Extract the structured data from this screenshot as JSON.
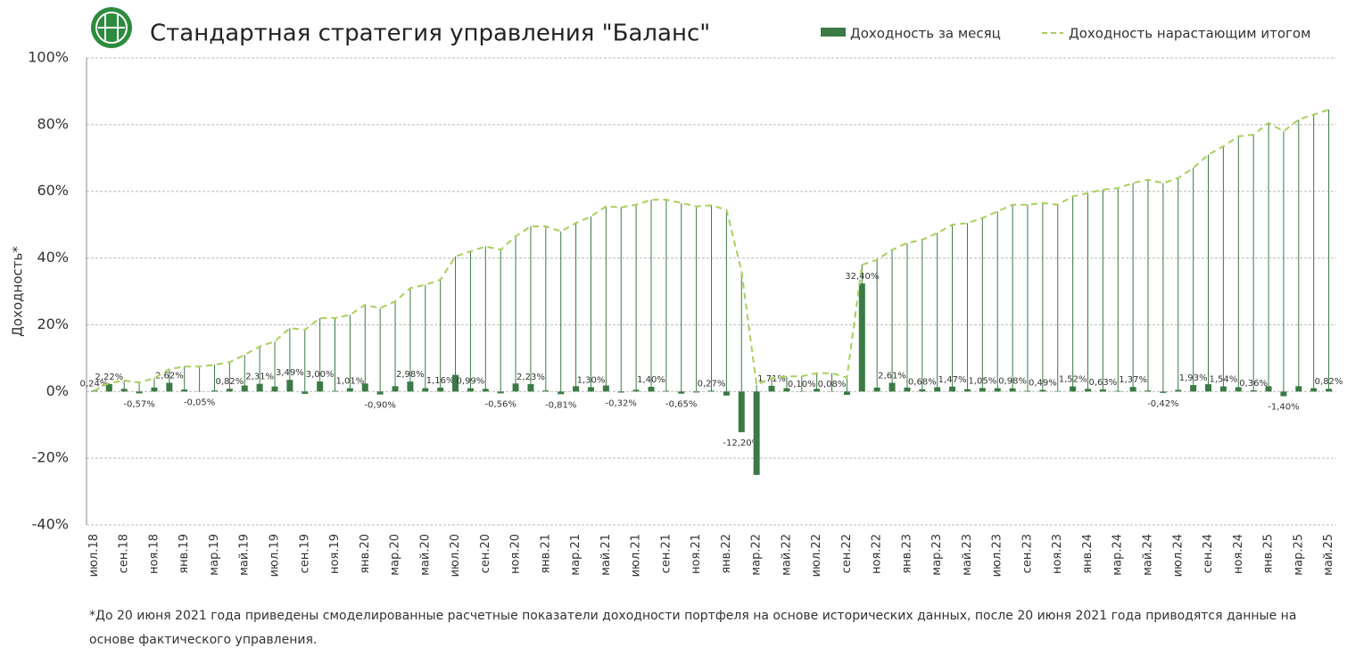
{
  "chart_data": {
    "type": "bar",
    "title": "Стандартная стратегия управления \"Баланс\"",
    "y_label": "Доходность*",
    "footnote": [
      "*До 20 июня 2021 года приведены смоделированные расчетные показатели доходности портфеля на основе исторических данных, после 20 июня 2021 года приводятся данные на",
      "основе фактического управления."
    ],
    "categories": [
      "июл.18",
      null,
      "сен.18",
      null,
      "ноя.18",
      null,
      "янв.19",
      null,
      "мар.19",
      null,
      "май.19",
      null,
      "июл.19",
      null,
      "сен.19",
      null,
      "ноя.19",
      null,
      "янв.20",
      null,
      "мар.20",
      null,
      "май.20",
      null,
      "июл.20",
      null,
      "сен.20",
      null,
      "ноя.20",
      null,
      "янв.21",
      null,
      "мар.21",
      null,
      "май.21",
      null,
      "июл.21",
      null,
      "сен.21",
      null,
      "ноя.21",
      null,
      "янв.22",
      null,
      "мар.22",
      null,
      "май.22",
      null,
      "июл.22",
      null,
      "сен.22",
      null,
      "ноя.22",
      null,
      "янв.23",
      null,
      "мар.23",
      null,
      "май.23",
      null,
      "июл.23",
      null,
      "сен.23",
      null,
      "ноя.23",
      null,
      "янв.24",
      null,
      "мар.24",
      null,
      "май.24",
      null,
      "июл.24",
      null,
      "сен.24",
      null,
      "ноя.24",
      null,
      "янв.25",
      null,
      "мар.25",
      null,
      "май.25"
    ],
    "series": [
      {
        "name": "Доходность за месяц",
        "type": "bar",
        "color": "#3b7a45",
        "values": [
          0.24,
          2.22,
          0.8,
          -0.57,
          1.2,
          2.62,
          0.6,
          -0.05,
          0.3,
          0.82,
          1.8,
          2.31,
          1.5,
          3.49,
          -0.7,
          3.0,
          0.2,
          1.01,
          2.4,
          -0.9,
          1.6,
          2.98,
          1.0,
          1.16,
          5.0,
          0.99,
          0.8,
          -0.56,
          2.4,
          2.23,
          0.3,
          -0.81,
          1.6,
          1.3,
          1.8,
          -0.32,
          0.5,
          1.4,
          0.2,
          -0.65,
          -0.3,
          0.27,
          -1.2,
          -12.2,
          -25.0,
          1.71,
          1.0,
          0.1,
          0.8,
          0.08,
          -1.0,
          32.4,
          1.2,
          2.61,
          1.2,
          0.68,
          1.3,
          1.47,
          0.7,
          1.05,
          1.0,
          0.98,
          0.2,
          0.49,
          0.1,
          1.52,
          0.8,
          0.63,
          0.2,
          1.37,
          0.3,
          -0.42,
          0.5,
          1.93,
          2.2,
          1.54,
          1.3,
          0.36,
          1.6,
          -1.4,
          1.6,
          1.0,
          0.82
        ],
        "value_labels": [
          "0,24%",
          "2,22%",
          null,
          "-0,57%",
          null,
          "2,62%",
          null,
          "-0,05%",
          null,
          "0,82%",
          null,
          "2,31%",
          null,
          "3,49%",
          null,
          "3,00%",
          null,
          "1,01%",
          null,
          "-0,90%",
          null,
          "2,98%",
          null,
          "1,16%",
          null,
          "0,99%",
          null,
          "-0,56%",
          null,
          "2,23%",
          null,
          "-0,81%",
          null,
          "1,30%",
          null,
          "-0,32%",
          null,
          "1,40%",
          null,
          "-0,65%",
          null,
          "0,27%",
          null,
          "-12,20%",
          null,
          "1,71%",
          null,
          "0,10%",
          null,
          "0,08%",
          null,
          "32,40%",
          null,
          "2,61%",
          null,
          "0,68%",
          null,
          "1,47%",
          null,
          "1,05%",
          null,
          "0,98%",
          null,
          "0,49%",
          null,
          "1,52%",
          null,
          "0,63%",
          null,
          "1,37%",
          null,
          "-0,42%",
          null,
          "1,93%",
          null,
          "1,54%",
          null,
          "0,36%",
          null,
          "-1,40%",
          null,
          null,
          "0,82%"
        ]
      },
      {
        "name": "Доходность нарастающим итогом",
        "type": "line",
        "color": "#a8d05a",
        "values": [
          0.2,
          2.5,
          3.3,
          2.7,
          4,
          6.7,
          7.5,
          7.5,
          8,
          8.8,
          11,
          13.5,
          15,
          19,
          18.5,
          22,
          22,
          23,
          26,
          25,
          27,
          31,
          32,
          33.5,
          40.5,
          42,
          43.5,
          42.5,
          46.5,
          49.5,
          49.5,
          48,
          50.5,
          52.5,
          55.5,
          55.2,
          56,
          57.5,
          57.5,
          56.5,
          55.5,
          55.8,
          54.5,
          36,
          2,
          4,
          4.5,
          4.6,
          5.5,
          5.5,
          4.2,
          38,
          39.5,
          42.5,
          44.5,
          45.5,
          47.5,
          50,
          50.5,
          52,
          54,
          56,
          56,
          56.5,
          56,
          58.5,
          59.5,
          60.5,
          61,
          62.5,
          63.5,
          62.5,
          64,
          67,
          71,
          73.5,
          76.5,
          77,
          80.5,
          78,
          81.5,
          83,
          84.5
        ]
      }
    ],
    "ylim": [
      -40,
      100
    ],
    "yticks": [
      {
        "value": -40,
        "label": "-40%"
      },
      {
        "value": -20,
        "label": "-20%"
      },
      {
        "value": 0,
        "label": "0%"
      },
      {
        "value": 20,
        "label": "20%"
      },
      {
        "value": 40,
        "label": "40%"
      },
      {
        "value": 60,
        "label": "60%"
      },
      {
        "value": 80,
        "label": "80%"
      },
      {
        "value": 100,
        "label": "100%"
      }
    ],
    "grid": true
  }
}
